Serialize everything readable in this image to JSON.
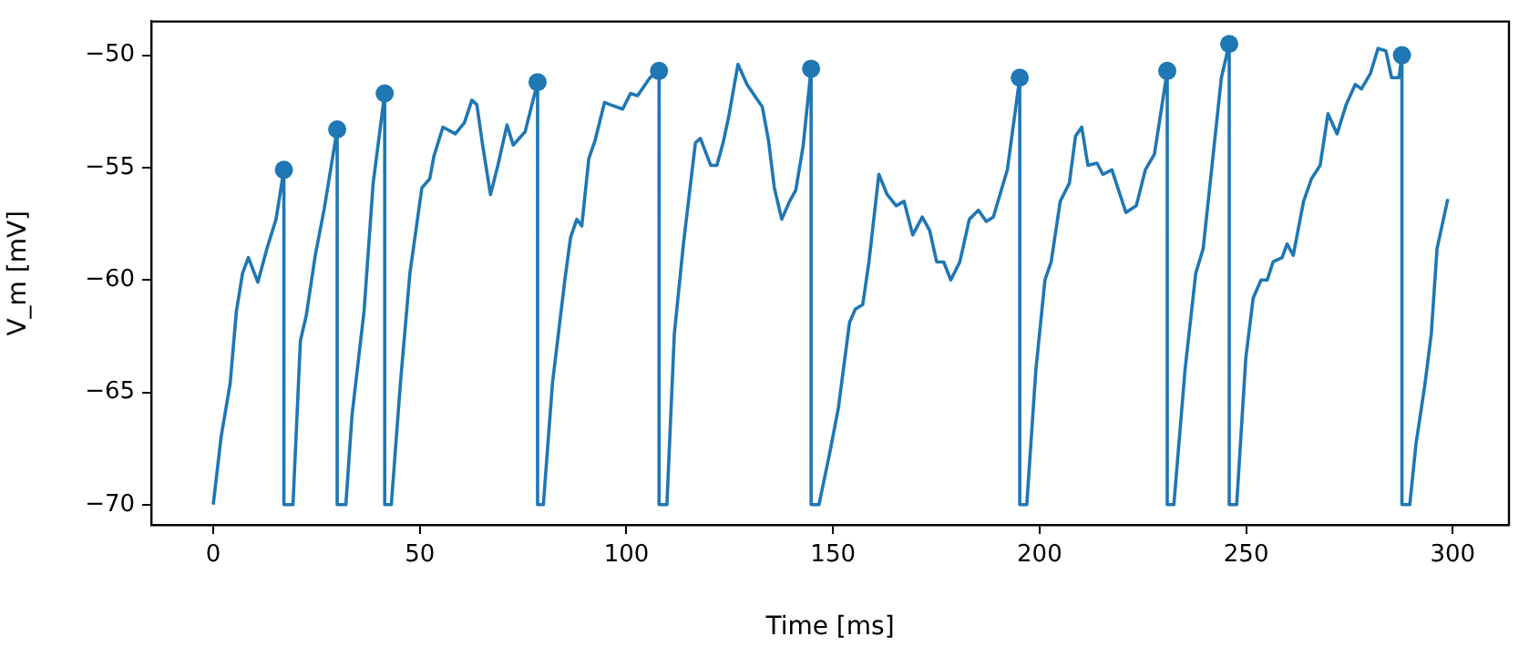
{
  "chart_data": {
    "type": "line",
    "xlabel": "Time [ms]",
    "ylabel": "V_m [mV]",
    "xlim": [
      -15,
      313.6
    ],
    "ylim": [
      -70.9,
      -48.5
    ],
    "xticks": [
      0,
      50,
      100,
      150,
      200,
      250,
      300
    ],
    "yticks": [
      -70,
      -65,
      -60,
      -55,
      -50
    ],
    "grid": false,
    "legend": false,
    "series": [
      {
        "type": "line",
        "color": "#1f77b4",
        "marker": "none",
        "x": [
          0,
          1.9,
          4.1,
          5.6,
          7.1,
          8.5,
          10.8,
          13,
          15.2,
          17.1,
          17.1,
          19.3,
          21.1,
          22.5,
          24.7,
          26.9,
          30,
          30,
          32.1,
          33.6,
          36.5,
          38.7,
          41.5,
          41.5,
          43.1,
          45.3,
          47.6,
          50.5,
          52.4,
          53.4,
          55.6,
          58.6,
          60.8,
          62.6,
          63.8,
          65.2,
          67.1,
          68.9,
          71.1,
          72.6,
          75.5,
          78.5,
          78.5,
          79.9,
          82.1,
          85.1,
          86.5,
          88,
          89.2,
          90.9,
          92.4,
          94.7,
          96.1,
          99.1,
          101,
          102.7,
          105.7,
          107.9,
          107.9,
          109.8,
          111.6,
          113.8,
          116.7,
          117.9,
          120.4,
          121.9,
          123.4,
          124.8,
          127,
          129.2,
          131.4,
          132.9,
          134.4,
          135.8,
          137.6,
          139.5,
          141,
          142.8,
          144.7,
          144.7,
          146.6,
          149.1,
          151.3,
          154,
          155.4,
          157.2,
          158.7,
          161.1,
          163.1,
          165.3,
          167.2,
          169.3,
          171.6,
          173.4,
          175.1,
          176.8,
          178.5,
          180.7,
          183,
          185.2,
          187.1,
          188.8,
          192.2,
          195.2,
          195.2,
          196.9,
          199.1,
          201.3,
          202.8,
          205,
          207.2,
          208.7,
          210.2,
          211.7,
          213.9,
          215.3,
          217.5,
          220.9,
          223.4,
          225.6,
          227.8,
          230.9,
          230.9,
          232.5,
          235.2,
          237.8,
          239.6,
          241.8,
          244,
          245.9,
          245.9,
          247.7,
          249.9,
          251.7,
          253.6,
          255.1,
          256.5,
          258.7,
          259.9,
          261.4,
          263.9,
          265.8,
          267.9,
          269.8,
          272,
          274.2,
          276.4,
          277.9,
          280.1,
          281.9,
          283.8,
          285.2,
          287,
          287.7,
          287.7,
          289.6,
          291.1,
          293.3,
          294.8,
          296.2,
          298.8
        ],
        "values": [
          -70,
          -67,
          -64.6,
          -61.4,
          -59.7,
          -59,
          -60.1,
          -58.6,
          -57.3,
          -55.1,
          -70,
          -70,
          -62.7,
          -61.6,
          -58.9,
          -56.8,
          -53.3,
          -70,
          -70,
          -66,
          -61.4,
          -55.7,
          -51.7,
          -70,
          -70,
          -64.6,
          -59.7,
          -55.9,
          -55.5,
          -54.5,
          -53.2,
          -53.5,
          -53,
          -52,
          -52.2,
          -54,
          -56.2,
          -54.9,
          -53.1,
          -54,
          -53.4,
          -51.2,
          -70,
          -70,
          -64.6,
          -60,
          -58.1,
          -57.3,
          -57.6,
          -54.6,
          -53.8,
          -52.1,
          -52.2,
          -52.4,
          -51.7,
          -51.8,
          -51,
          -50.7,
          -70,
          -70,
          -62.4,
          -58.4,
          -53.9,
          -53.7,
          -54.9,
          -54.9,
          -53.9,
          -52.7,
          -50.4,
          -51.3,
          -51.9,
          -52.3,
          -53.8,
          -55.9,
          -57.3,
          -56.5,
          -56,
          -54,
          -50.6,
          -70,
          -70,
          -67.8,
          -65.7,
          -61.9,
          -61.3,
          -61.1,
          -59.2,
          -55.3,
          -56.2,
          -56.7,
          -56.5,
          -58,
          -57.2,
          -57.8,
          -59.2,
          -59.2,
          -60,
          -59.2,
          -57.3,
          -56.9,
          -57.4,
          -57.2,
          -55.1,
          -51,
          -70,
          -70,
          -64,
          -60,
          -59.2,
          -56.5,
          -55.7,
          -53.6,
          -53.2,
          -54.9,
          -54.8,
          -55.3,
          -55.1,
          -57,
          -56.7,
          -55.1,
          -54.4,
          -50.7,
          -70,
          -70,
          -64,
          -59.7,
          -58.6,
          -54.8,
          -51,
          -49.5,
          -70,
          -70,
          -63.5,
          -60.8,
          -60,
          -60,
          -59.2,
          -59,
          -58.4,
          -58.9,
          -56.5,
          -55.5,
          -54.9,
          -52.6,
          -53.5,
          -52.2,
          -51.3,
          -51.5,
          -50.8,
          -49.7,
          -49.8,
          -51,
          -51,
          -50,
          -70,
          -70,
          -67.3,
          -64.6,
          -62.4,
          -58.6,
          -56.4
        ]
      },
      {
        "type": "scatter",
        "color": "#1f77b4",
        "marker": "circle",
        "x": [
          17.1,
          30,
          41.5,
          78.5,
          107.9,
          144.7,
          195.2,
          230.9,
          245.9,
          287.7
        ],
        "values": [
          -55.1,
          -53.3,
          -51.7,
          -51.2,
          -50.7,
          -50.6,
          -51,
          -50.7,
          -49.5,
          -50
        ]
      }
    ]
  }
}
